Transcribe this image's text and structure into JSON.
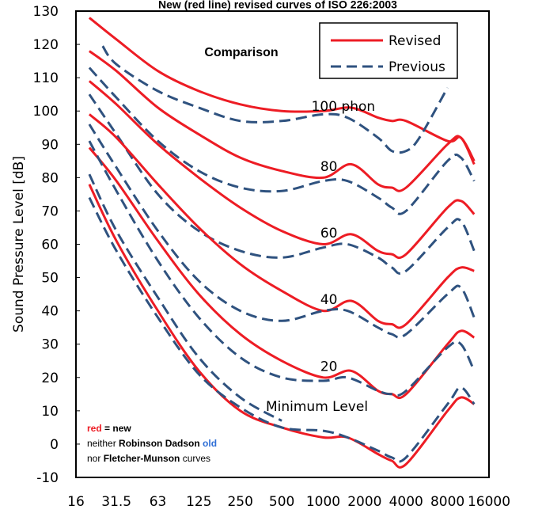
{
  "title": "New (red line) revised curves of ISO 226:2003",
  "comparison_label": "Comparison",
  "ylabel": "Sound Pressure Level [dB]",
  "legend": {
    "revised": "Revised",
    "previous": "Previous"
  },
  "curve_labels": [
    "100 phon",
    "80",
    "60",
    "40",
    "20",
    "Minimum Level"
  ],
  "note": {
    "red": "red",
    "eq_new": " = new",
    "neither": "neither ",
    "robinson": "Robinson Dadson",
    "old": " old",
    "nor": "nor ",
    "fletcher": "Fletcher-Munson",
    "curves": " curves"
  },
  "colors": {
    "revised": "#ed1c24",
    "previous": "#2f527f",
    "note_red": "#ed1c24",
    "note_blue": "#2f6fd6"
  },
  "chart_data": {
    "type": "line",
    "xscale": "log",
    "xlabel": "",
    "ylabel": "Sound Pressure Level [dB]",
    "xticks": [
      "16",
      "31.5",
      "63",
      "125",
      "250",
      "500",
      "1000",
      "2000",
      "4000",
      "8000",
      "16000"
    ],
    "yticks": [
      -10,
      0,
      10,
      20,
      30,
      40,
      50,
      60,
      70,
      80,
      90,
      100,
      110,
      120,
      130
    ],
    "ylim": [
      -10,
      130
    ],
    "xlim": [
      16,
      16000
    ],
    "legend_position": "top-right",
    "series": [
      {
        "name": "Revised",
        "group": "100 phon",
        "style": "solid",
        "x": [
          20,
          31.5,
          63,
          125,
          250,
          500,
          1000,
          1600,
          2500,
          3150,
          4000,
          8000,
          10000,
          12500
        ],
        "y": [
          128,
          121.5,
          112,
          106,
          102,
          100,
          100,
          101,
          98,
          97,
          97,
          91,
          92,
          85
        ]
      },
      {
        "name": "Previous",
        "group": "100 phon",
        "style": "dashed",
        "x": [
          25,
          31.5,
          63,
          125,
          250,
          500,
          1000,
          1500,
          2500,
          3150,
          4000,
          5000,
          8000
        ],
        "y": [
          119.5,
          114,
          106,
          101,
          97,
          97,
          99,
          98,
          92,
          88,
          88,
          92,
          107
        ]
      },
      {
        "name": "Revised",
        "group": "80 phon",
        "style": "solid",
        "x": [
          20,
          31.5,
          63,
          125,
          250,
          500,
          1000,
          1600,
          2500,
          3150,
          4000,
          8000,
          10000,
          12500
        ],
        "y": [
          118,
          112,
          101,
          93,
          86,
          82,
          80,
          84,
          78,
          77,
          77,
          90,
          92,
          84
        ]
      },
      {
        "name": "Previous",
        "group": "80 phon",
        "style": "dashed",
        "x": [
          20,
          31.5,
          63,
          125,
          250,
          500,
          1000,
          1500,
          2500,
          3150,
          4000,
          8000,
          10000,
          12500
        ],
        "y": [
          113,
          104,
          91,
          82,
          77,
          76,
          79,
          79,
          74,
          71,
          70,
          85,
          86,
          79
        ]
      },
      {
        "name": "Revised",
        "group": "60 phon",
        "style": "solid",
        "x": [
          20,
          31.5,
          63,
          125,
          250,
          500,
          1000,
          1600,
          2500,
          3150,
          4000,
          8000,
          10000,
          12500
        ],
        "y": [
          109,
          102,
          90,
          80,
          71,
          64,
          60,
          63,
          58,
          57,
          57,
          71,
          73,
          69
        ]
      },
      {
        "name": "Previous",
        "group": "60 phon",
        "style": "dashed",
        "x": [
          20,
          31.5,
          63,
          125,
          250,
          500,
          1000,
          1500,
          2500,
          3150,
          4000,
          8000,
          10000,
          12500
        ],
        "y": [
          105,
          93,
          75,
          64,
          58,
          56,
          59,
          60,
          56,
          53,
          52,
          65,
          67,
          58
        ]
      },
      {
        "name": "Revised",
        "group": "40 phon",
        "style": "solid",
        "x": [
          20,
          31.5,
          63,
          125,
          250,
          500,
          1000,
          1600,
          2500,
          3150,
          4000,
          8000,
          10000,
          12500
        ],
        "y": [
          99,
          92,
          78,
          65,
          54,
          46,
          40,
          43,
          37,
          36,
          36,
          50,
          53,
          52
        ]
      },
      {
        "name": "Previous",
        "group": "40 phon",
        "style": "dashed",
        "x": [
          20,
          31.5,
          63,
          125,
          250,
          500,
          1000,
          1500,
          2500,
          3150,
          4000,
          8000,
          10000,
          12500
        ],
        "y": [
          96,
          83,
          64,
          49,
          40,
          37,
          40,
          40,
          35,
          33,
          33,
          45,
          47,
          38
        ]
      },
      {
        "name": "Revised",
        "group": "20 phon",
        "style": "solid",
        "x": [
          20,
          31.5,
          63,
          125,
          250,
          500,
          1000,
          1600,
          2500,
          3150,
          4000,
          8000,
          10000,
          12500
        ],
        "y": [
          89,
          79,
          61,
          45,
          33,
          25,
          20,
          22,
          16,
          15,
          15,
          30,
          34,
          32
        ]
      },
      {
        "name": "Previous",
        "group": "20 phon",
        "style": "dashed",
        "x": [
          20,
          31.5,
          63,
          125,
          250,
          500,
          1000,
          1500,
          2500,
          3150,
          4000,
          8000,
          10000,
          12500
        ],
        "y": [
          91,
          76,
          55,
          38,
          26,
          20,
          19,
          20,
          16,
          15,
          16,
          29,
          30,
          22
        ]
      },
      {
        "name": "Revised",
        "group": "Minimum Level",
        "style": "solid",
        "x": [
          20,
          31.5,
          63,
          125,
          250,
          500,
          1000,
          1500,
          2500,
          3150,
          4000,
          8000,
          10000,
          12500
        ],
        "y": [
          78,
          61,
          40,
          22,
          10,
          5,
          2,
          2,
          -3,
          -5,
          -6,
          10,
          14,
          12
        ]
      },
      {
        "name": "Previous",
        "group": "Minimum Level",
        "style": "dashed",
        "x": [
          20,
          31.5,
          63,
          125,
          250,
          500,
          1000,
          1500,
          2500,
          3150,
          4000,
          8000,
          10000,
          12500
        ],
        "y": [
          74,
          58,
          38,
          21,
          11,
          5,
          4,
          2,
          -2,
          -4,
          -4,
          12,
          17,
          12
        ]
      },
      {
        "name": "Previous",
        "group": "Minimum Level (alt)",
        "style": "dashed",
        "x": [
          20,
          31.5,
          63,
          125,
          250,
          500
        ],
        "y": [
          81,
          64,
          44,
          26,
          14,
          7
        ]
      }
    ],
    "curve_label_positions": [
      {
        "text_index": 0,
        "x": 1400,
        "y": 100
      },
      {
        "text_index": 1,
        "x": 1100,
        "y": 82
      },
      {
        "text_index": 2,
        "x": 1100,
        "y": 62
      },
      {
        "text_index": 3,
        "x": 1100,
        "y": 42
      },
      {
        "text_index": 4,
        "x": 1100,
        "y": 22
      },
      {
        "text_index": 5,
        "x": 900,
        "y": 10
      }
    ]
  }
}
